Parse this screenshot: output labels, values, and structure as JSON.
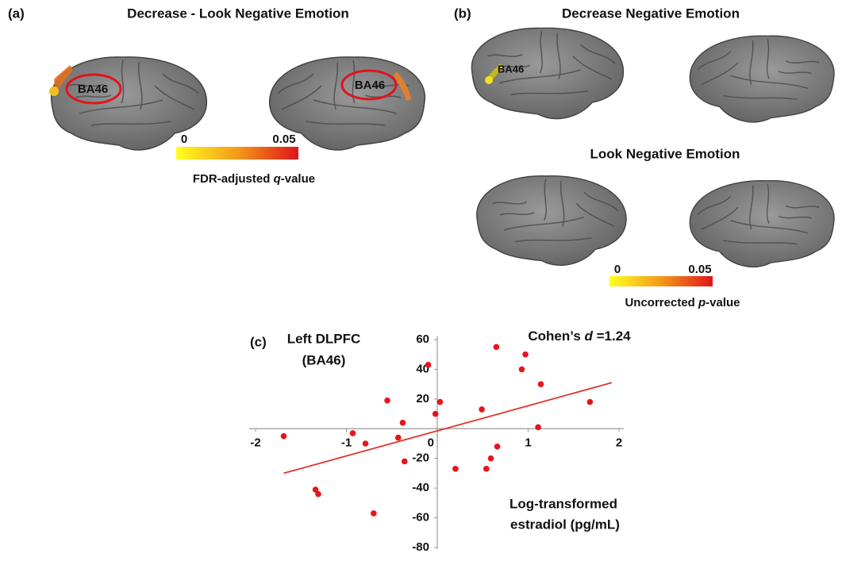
{
  "panel_a": {
    "label": "(a)",
    "title": "Decrease - Look Negative Emotion",
    "region_labels": [
      "BA46",
      "BA46"
    ],
    "colorbar": {
      "min_label": "0",
      "max_label": "0.05",
      "caption_parts": [
        "FDR-adjusted ",
        "q",
        "-value"
      ]
    }
  },
  "panel_b": {
    "label": "(b)",
    "title": "Decrease Negative Emotion",
    "subtitle": "Look Negative Emotion",
    "region_label": "BA46",
    "colorbar": {
      "min_label": "0",
      "max_label": "0.05",
      "caption_parts": [
        "Uncorrected ",
        "p",
        "-value"
      ]
    }
  },
  "chart_data": {
    "type": "scatter",
    "panel_label": "(c)",
    "ylabel_lines": [
      "Left DLPFC",
      "(BA46)"
    ],
    "xlabel_lines": [
      "Log-transformed",
      "estradiol (pg/mL)"
    ],
    "annotation_parts": [
      "Cohen’s ",
      "d",
      " =1.24"
    ],
    "x": [
      -1.69,
      -0.93,
      -0.79,
      -0.55,
      -0.43,
      -0.38,
      -0.36,
      -1.34,
      -1.31,
      -0.7,
      -0.1,
      -0.02,
      0.03,
      0.2,
      0.49,
      0.54,
      0.59,
      0.66,
      0.65,
      0.93,
      0.97,
      1.14,
      1.11,
      1.68
    ],
    "y": [
      -5,
      -3,
      -10,
      19,
      -6,
      4,
      -22,
      -41,
      -44,
      -57,
      43,
      10,
      18,
      -27,
      13,
      -27,
      -20,
      -12,
      55,
      40,
      50,
      30,
      1,
      18
    ],
    "color": "#e8141c",
    "trendline": {
      "x": [
        -1.69,
        1.92
      ],
      "y": [
        -30,
        31
      ],
      "color": "#e0352b"
    },
    "xlim": [
      -2,
      2
    ],
    "ylim": [
      -80,
      60
    ],
    "xticks": [
      -2,
      -1,
      0,
      1,
      2
    ],
    "yticks": [
      -80,
      -60,
      -40,
      -20,
      0,
      20,
      40,
      60
    ]
  }
}
